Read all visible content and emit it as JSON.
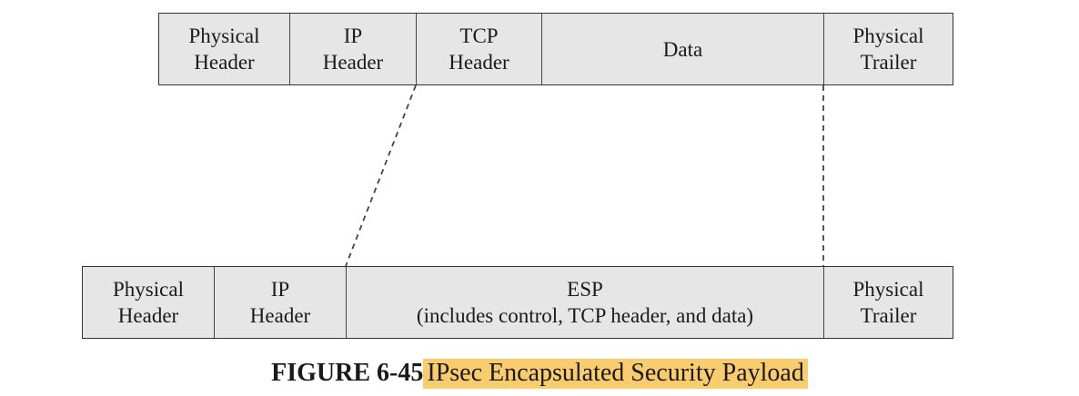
{
  "top_packet": {
    "fields": [
      {
        "line1": "Physical",
        "line2": "Header"
      },
      {
        "line1": "IP",
        "line2": "Header"
      },
      {
        "line1": "TCP",
        "line2": "Header"
      },
      {
        "line1": "Data",
        "line2": ""
      },
      {
        "line1": "Physical",
        "line2": "Trailer"
      }
    ]
  },
  "bottom_packet": {
    "fields": [
      {
        "line1": "Physical",
        "line2": "Header"
      },
      {
        "line1": "IP",
        "line2": "Header"
      },
      {
        "line1": "ESP",
        "line2": "(includes control, TCP header, and data)"
      },
      {
        "line1": "Physical",
        "line2": "Trailer"
      }
    ]
  },
  "caption": {
    "label": "FIGURE 6-45",
    "title": "IPsec Encapsulated Security Payload"
  },
  "colors": {
    "box_fill": "#e6e6e6",
    "border": "#333333",
    "highlight": "#f9cd6e"
  }
}
